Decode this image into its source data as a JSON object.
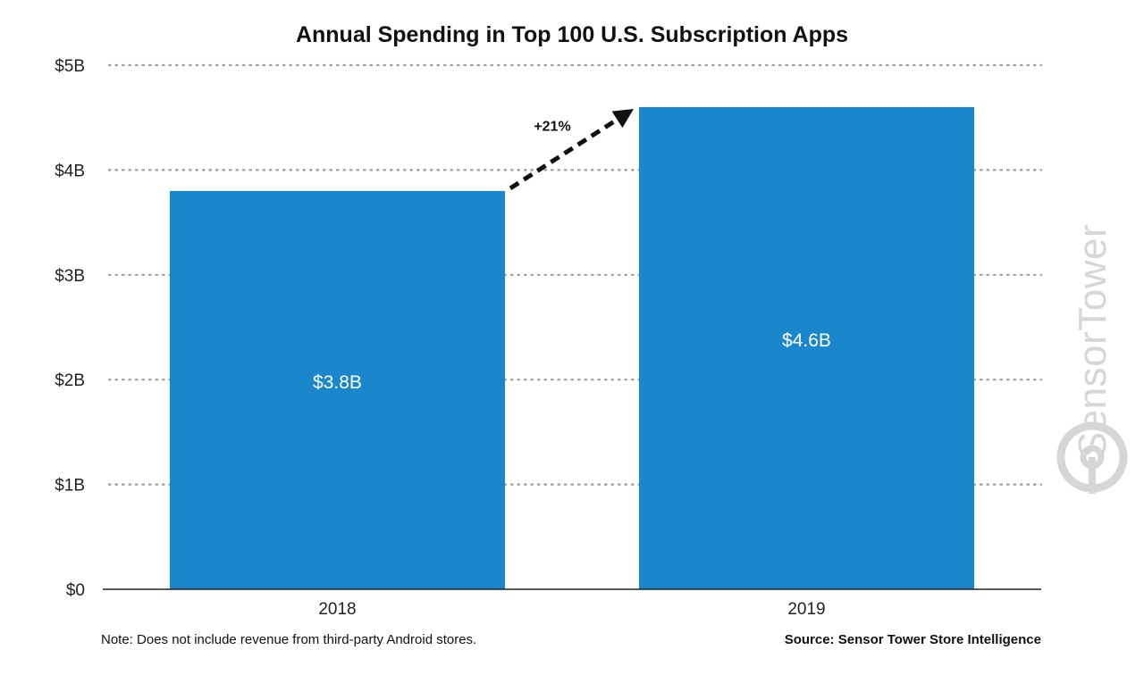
{
  "chart_data": {
    "type": "bar",
    "title": "Annual Spending in Top 100 U.S. Subscription Apps",
    "categories": [
      "2018",
      "2019"
    ],
    "series": [
      {
        "values": [
          3.8,
          4.6
        ]
      }
    ],
    "data_labels": [
      "$3.8B",
      "$4.6B"
    ],
    "y_ticks": [
      {
        "value": 0,
        "label": "$0"
      },
      {
        "value": 1,
        "label": "$1B"
      },
      {
        "value": 2,
        "label": "$2B"
      },
      {
        "value": 3,
        "label": "$3B"
      },
      {
        "value": 4,
        "label": "$4B"
      },
      {
        "value": 5,
        "label": "$5B"
      }
    ],
    "ylim": [
      0,
      5
    ],
    "xlabel": "",
    "ylabel": "",
    "grid": "dotted horizontal",
    "bar_color": "#1a87cc",
    "annotation": {
      "text": "+21%",
      "from": "2018",
      "to": "2019",
      "style": "dashed arrow"
    }
  },
  "footer": {
    "note": "Note: Does not include revenue from third-party Android stores.",
    "source": "Source: Sensor Tower Store Intelligence"
  },
  "watermark": {
    "text": "SensorTower",
    "icon": "sensor-tower-logo-icon"
  }
}
